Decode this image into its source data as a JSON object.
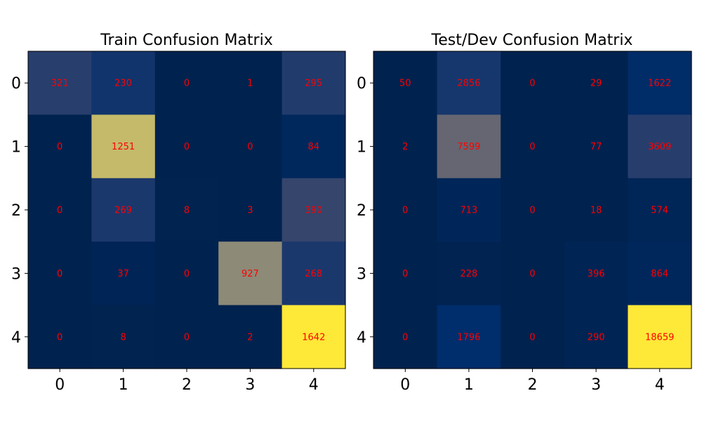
{
  "colors": {
    "cell_text": "#ff0000",
    "cmap": "cividis",
    "cmap_low": "#00224e",
    "cmap_high": "#fee838"
  },
  "chart_data": [
    {
      "type": "heatmap",
      "title": "Train Confusion Matrix",
      "x_ticks": [
        "0",
        "1",
        "2",
        "3",
        "4"
      ],
      "y_ticks": [
        "0",
        "1",
        "2",
        "3",
        "4"
      ],
      "matrix": [
        [
          321,
          230,
          0,
          1,
          295
        ],
        [
          0,
          1251,
          0,
          0,
          84
        ],
        [
          0,
          269,
          8,
          3,
          390
        ],
        [
          0,
          37,
          0,
          927,
          268
        ],
        [
          0,
          8,
          0,
          2,
          1642
        ]
      ],
      "grid": false,
      "xlabel": "",
      "ylabel": ""
    },
    {
      "type": "heatmap",
      "title": "Test/Dev Confusion Matrix",
      "x_ticks": [
        "0",
        "1",
        "2",
        "3",
        "4"
      ],
      "y_ticks": [
        "0",
        "1",
        "2",
        "3",
        "4"
      ],
      "matrix": [
        [
          50,
          2856,
          0,
          29,
          1622
        ],
        [
          2,
          7599,
          0,
          77,
          3609
        ],
        [
          0,
          713,
          0,
          18,
          574
        ],
        [
          0,
          228,
          0,
          396,
          864
        ],
        [
          0,
          1796,
          0,
          290,
          18659
        ]
      ],
      "grid": false,
      "xlabel": "",
      "ylabel": ""
    }
  ]
}
